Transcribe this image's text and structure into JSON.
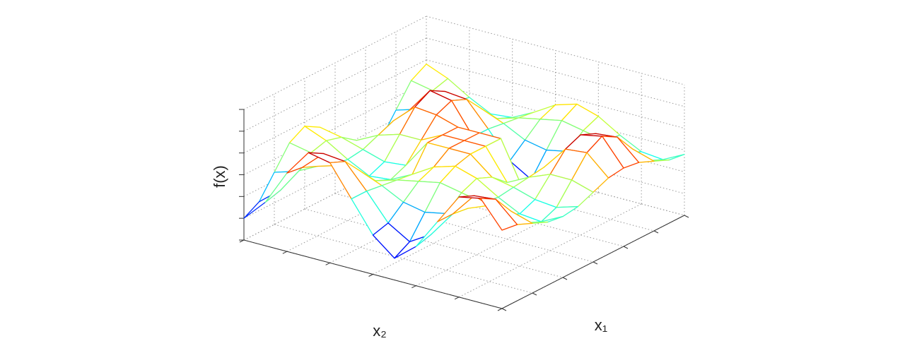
{
  "chart_data": {
    "type": "surface",
    "x_label": "x₁",
    "y_label": "x₂",
    "z_label": "f(x)",
    "x": [
      0,
      1,
      2,
      3,
      4,
      5,
      6,
      7,
      8,
      9,
      10,
      11,
      12
    ],
    "y": [
      0,
      1,
      2,
      3,
      4,
      5,
      6,
      7,
      8,
      9,
      10,
      11,
      12
    ],
    "z": [
      [
        1,
        2,
        3.6,
        4.8,
        4.6,
        3.2,
        1.8,
        1,
        1.8,
        3.2,
        4.6,
        4.8,
        3.6
      ],
      [
        1.4,
        2.2,
        3.5,
        4.4,
        4.3,
        3.2,
        2,
        1.4,
        2,
        3.2,
        4.3,
        4.4,
        3.5
      ],
      [
        2.4,
        2.7,
        3.2,
        3.5,
        3.5,
        3.1,
        2.6,
        2.4,
        2.6,
        3.1,
        3.5,
        3.5,
        3.2
      ],
      [
        3.4,
        3.2,
        2.9,
        2.6,
        2.7,
        3,
        3.2,
        3.4,
        3.2,
        3,
        2.7,
        2.6,
        2.9
      ],
      [
        3.8,
        3.4,
        2.8,
        2.3,
        2.4,
        2.9,
        3.5,
        3.8,
        3.5,
        2.9,
        2.4,
        2.3,
        2.8
      ],
      [
        3.4,
        3.2,
        2.9,
        2.6,
        2.7,
        4,
        4,
        4,
        3.2,
        3,
        2.7,
        2.6,
        2.9
      ],
      [
        2.4,
        2.7,
        3.2,
        3.5,
        3.5,
        4,
        4,
        4,
        2.6,
        3.1,
        3.5,
        3.5,
        3.2
      ],
      [
        1.4,
        2.2,
        3.5,
        4.4,
        4.3,
        4,
        4,
        4,
        2,
        3.2,
        4.3,
        4.4,
        3.5
      ],
      [
        1,
        2,
        3.6,
        4.8,
        4.6,
        3.2,
        1.8,
        1,
        1.8,
        3.2,
        4.6,
        4.8,
        3.6
      ],
      [
        1.4,
        2.2,
        3.5,
        4.4,
        4.3,
        3.2,
        2,
        1.4,
        2,
        3.2,
        4.3,
        4.4,
        3.5
      ],
      [
        2.4,
        2.7,
        3.2,
        3.5,
        3.5,
        3.1,
        2.6,
        2.4,
        2.6,
        3.1,
        3.5,
        3.5,
        3.2
      ],
      [
        3.4,
        3.2,
        2.9,
        2.6,
        2.7,
        3,
        3.2,
        3.4,
        3.2,
        3,
        2.7,
        2.6,
        2.9
      ],
      [
        3.8,
        3.4,
        2.8,
        2.3,
        2.4,
        2.9,
        3.5,
        3.8,
        3.5,
        2.9,
        2.4,
        2.3,
        2.8
      ]
    ],
    "xlim": [
      0,
      12
    ],
    "ylim": [
      0,
      12
    ],
    "zlim": [
      0,
      6
    ],
    "xticks": [
      0,
      2,
      4,
      6,
      8,
      10,
      12
    ],
    "yticks": [
      0,
      2,
      4,
      6,
      8,
      10,
      12
    ],
    "zticks": [
      0,
      1,
      2,
      3,
      4,
      5,
      6
    ],
    "colormap": "jet",
    "grid": true
  }
}
